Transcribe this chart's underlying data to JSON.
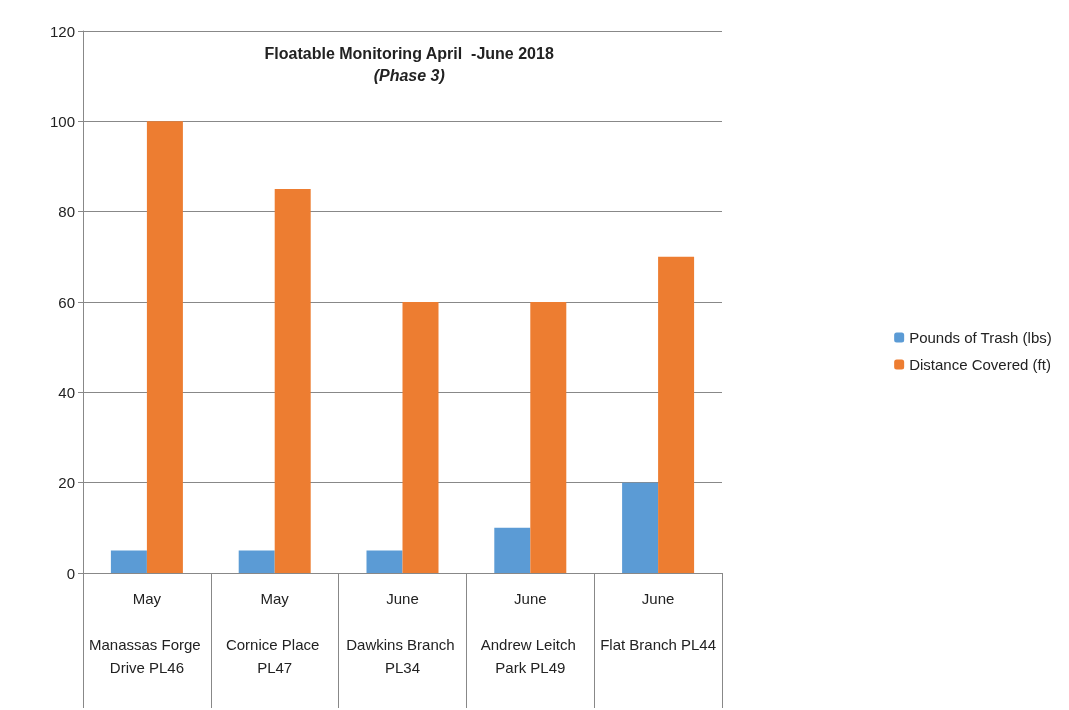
{
  "chart_data": {
    "type": "bar",
    "title": "Floatable Monitoring April  -June 2018",
    "subtitle": "(Phase 3)",
    "categories": [
      "May\nManassas Forge Drive PL46",
      "May\nCornice Place PL47",
      "June\nDawkins Branch PL34",
      "June\nAndrew Leitch Park PL49",
      "June\nFlat Branch PL44"
    ],
    "series": [
      {
        "name": "Pounds of Trash (lbs)",
        "color": "#5b9bd5",
        "values": [
          5,
          5,
          5,
          10,
          20
        ]
      },
      {
        "name": "Distance Covered (ft)",
        "color": "#ed7d31",
        "values": [
          100,
          85,
          60,
          60,
          70
        ]
      }
    ],
    "ylim": [
      0,
      120
    ],
    "yticks": [
      0,
      20,
      40,
      60,
      80,
      100,
      120
    ],
    "grid": "y",
    "legend": "right"
  }
}
